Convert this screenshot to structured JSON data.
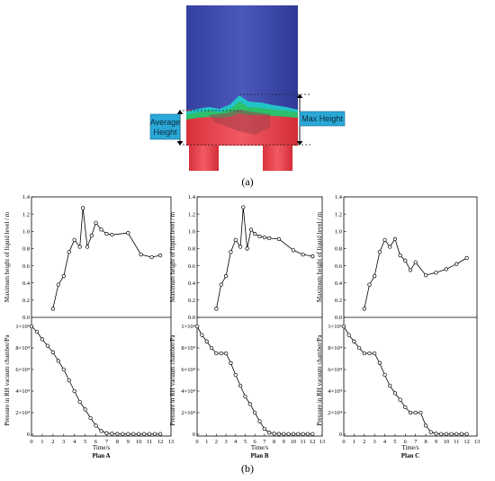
{
  "top_figure": {
    "avg_label_line1": "Average",
    "avg_label_line2": "Height",
    "max_label": "Max Height",
    "caption": "(a)",
    "colors": {
      "vessel_top": "#3d49a8",
      "liquid": "#e8404a",
      "surface_green": "#2dbf6a",
      "surface_cyan": "#22c4c8"
    }
  },
  "bottom_caption": "(b)",
  "chart_data": [
    {
      "type": "line",
      "plan": "Plan A",
      "xlabel": "Time/s",
      "x_ticks": [
        "0",
        "1",
        "2",
        "3",
        "4",
        "5",
        "6",
        "7",
        "8",
        "9",
        "10",
        "11",
        "12",
        "13"
      ],
      "xlim": [
        0,
        13
      ],
      "top": {
        "ylabel": "Maximum height of liquid level / m",
        "ylim": [
          0,
          1.4
        ],
        "y_ticks": [
          "0.0",
          "0.2",
          "0.4",
          "0.6",
          "0.8",
          "1.0",
          "1.2",
          "1.4"
        ],
        "x": [
          2,
          2.5,
          3,
          3.5,
          4,
          4.5,
          4.8,
          5.2,
          5.6,
          6,
          6.5,
          7,
          7.5,
          9,
          10.2,
          11.2,
          12
        ],
        "y": [
          0.1,
          0.38,
          0.48,
          0.76,
          0.9,
          0.82,
          1.27,
          0.82,
          0.95,
          1.1,
          1.02,
          0.97,
          0.96,
          0.98,
          0.73,
          0.7,
          0.72
        ]
      },
      "bottom": {
        "ylabel": "Pressure in RH vacuum chamber/Pa",
        "ylim": [
          0,
          100000
        ],
        "y_ticks": [
          "0",
          "2×10⁴",
          "4×10⁴",
          "6×10⁴",
          "8×10⁴",
          "1×10⁵"
        ],
        "x": [
          0,
          0.5,
          1,
          1.5,
          2,
          2.5,
          3,
          3.5,
          4,
          4.5,
          5,
          5.5,
          6,
          6.5,
          7,
          7.5,
          8,
          8.5,
          9,
          9.5,
          10,
          10.5,
          11,
          11.5,
          12
        ],
        "y": [
          100000,
          95000,
          88000,
          82000,
          76000,
          68000,
          60000,
          50000,
          40000,
          30000,
          23000,
          15000,
          8000,
          3000,
          1000,
          500,
          300,
          200,
          200,
          200,
          200,
          200,
          200,
          200,
          200
        ]
      }
    },
    {
      "type": "line",
      "plan": "Plan B",
      "xlabel": "Time/s",
      "x_ticks": [
        "0",
        "1",
        "2",
        "3",
        "4",
        "5",
        "6",
        "7",
        "8",
        "9",
        "10",
        "11",
        "12",
        "13"
      ],
      "xlim": [
        0,
        13
      ],
      "top": {
        "ylabel": "Maximum height of liquid level / m",
        "ylim": [
          0,
          1.4
        ],
        "y_ticks": [
          "0.0",
          "0.2",
          "0.4",
          "0.6",
          "0.8",
          "1.0",
          "1.2",
          "1.4"
        ],
        "x": [
          2,
          2.5,
          3,
          3.5,
          4,
          4.5,
          4.8,
          5.2,
          5.6,
          6,
          6.5,
          7,
          7.5,
          8.5,
          10,
          11,
          12
        ],
        "y": [
          0.1,
          0.38,
          0.48,
          0.76,
          0.9,
          0.82,
          1.28,
          0.8,
          1.02,
          0.97,
          0.94,
          0.93,
          0.92,
          0.91,
          0.78,
          0.73,
          0.71
        ]
      },
      "bottom": {
        "ylabel": "Pressure in RH vacuum chamber/Pa",
        "ylim": [
          0,
          100000
        ],
        "y_ticks": [
          "0",
          "2×10⁴",
          "4×10⁴",
          "6×10⁴",
          "8×10⁴",
          "1×10⁵"
        ],
        "x": [
          0,
          0.5,
          1,
          1.5,
          2,
          2.5,
          3,
          3.5,
          4,
          4.5,
          5,
          5.5,
          6,
          6.5,
          7,
          7.5,
          8,
          8.5,
          9,
          9.5,
          10,
          10.5,
          11,
          11.5,
          12
        ],
        "y": [
          100000,
          92000,
          86000,
          80000,
          75000,
          75000,
          75000,
          66000,
          55000,
          45000,
          35000,
          28000,
          20000,
          12000,
          5000,
          1500,
          500,
          300,
          200,
          200,
          200,
          200,
          200,
          200,
          200
        ]
      }
    },
    {
      "type": "line",
      "plan": "Plan C",
      "xlabel": "Time/s",
      "x_ticks": [
        "0",
        "1",
        "2",
        "3",
        "4",
        "5",
        "6",
        "7",
        "8",
        "9",
        "10",
        "11",
        "12",
        "13"
      ],
      "xlim": [
        0,
        13
      ],
      "top": {
        "ylabel": "Maximum height of liquid level / m",
        "ylim": [
          0,
          1.4
        ],
        "y_ticks": [
          "0.0",
          "0.2",
          "0.4",
          "0.6",
          "0.8",
          "1.0",
          "1.2",
          "1.4"
        ],
        "x": [
          2,
          2.5,
          3,
          3.5,
          4,
          4.5,
          5,
          5.5,
          6,
          6.5,
          7,
          8,
          9,
          10,
          11,
          12
        ],
        "y": [
          0.1,
          0.38,
          0.48,
          0.76,
          0.9,
          0.82,
          0.91,
          0.72,
          0.66,
          0.55,
          0.64,
          0.49,
          0.52,
          0.56,
          0.62,
          0.69
        ]
      },
      "bottom": {
        "ylabel": "Pressure in RH vacuum chamber/Pa",
        "ylim": [
          0,
          100000
        ],
        "y_ticks": [
          "0",
          "2×10⁴",
          "4×10⁴",
          "6×10⁴",
          "8×10⁴",
          "1×10⁵"
        ],
        "x": [
          0,
          0.5,
          1,
          1.5,
          2,
          2.5,
          3,
          3.5,
          4,
          4.5,
          5,
          5.5,
          6,
          6.5,
          7,
          7.5,
          8,
          8.5,
          9,
          9.5,
          10,
          10.5,
          11,
          11.5,
          12
        ],
        "y": [
          100000,
          92000,
          86000,
          80000,
          75000,
          75000,
          75000,
          66000,
          55000,
          45000,
          38000,
          32000,
          25000,
          20000,
          20000,
          20000,
          8000,
          2000,
          500,
          200,
          200,
          200,
          200,
          200,
          200
        ]
      }
    }
  ]
}
